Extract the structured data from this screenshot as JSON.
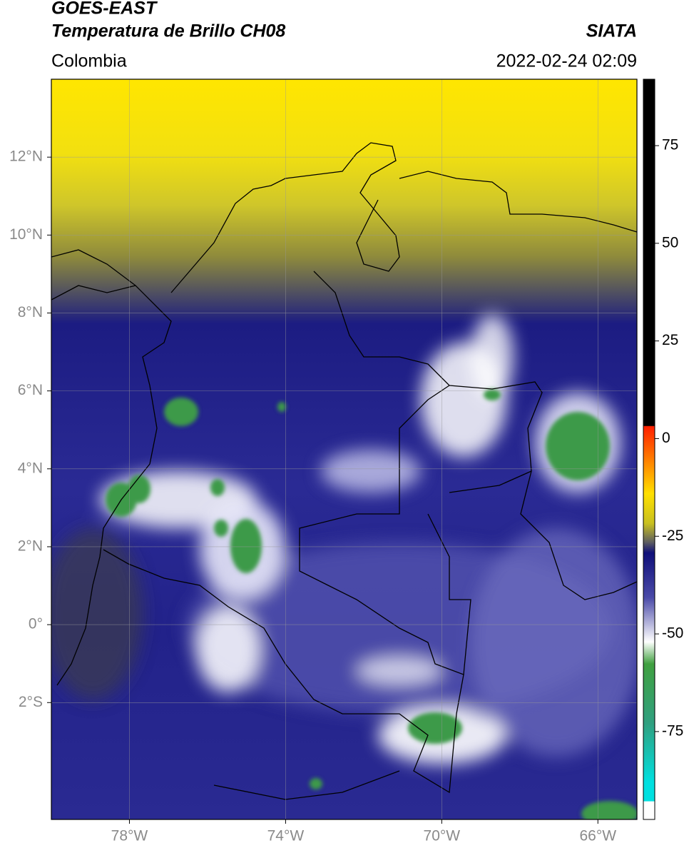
{
  "header": {
    "title": "GOES-EAST",
    "subtitle": "Temperatura de Brillo CH08",
    "region": "Colombia",
    "source": "SIATA",
    "datetime": "2022-02-24 02:09"
  },
  "map": {
    "xlim": [
      -80,
      -65
    ],
    "ylim": [
      -5,
      14
    ],
    "xticks": [
      {
        "value": -78,
        "label": "78°W"
      },
      {
        "value": -74,
        "label": "74°W"
      },
      {
        "value": -70,
        "label": "70°W"
      },
      {
        "value": -66,
        "label": "66°W"
      }
    ],
    "yticks": [
      {
        "value": 12,
        "label": "12°N"
      },
      {
        "value": 10,
        "label": "10°N"
      },
      {
        "value": 8,
        "label": "8°N"
      },
      {
        "value": 6,
        "label": "6°N"
      },
      {
        "value": 4,
        "label": "4°N"
      },
      {
        "value": 2,
        "label": "2°N"
      },
      {
        "value": 0,
        "label": "0°"
      },
      {
        "value": -2,
        "label": "2°S"
      }
    ],
    "grid": true
  },
  "colorbar": {
    "lim": [
      -97.5,
      92
    ],
    "ticks": [
      75,
      50,
      25,
      0,
      -25,
      -50,
      -75
    ]
  }
}
